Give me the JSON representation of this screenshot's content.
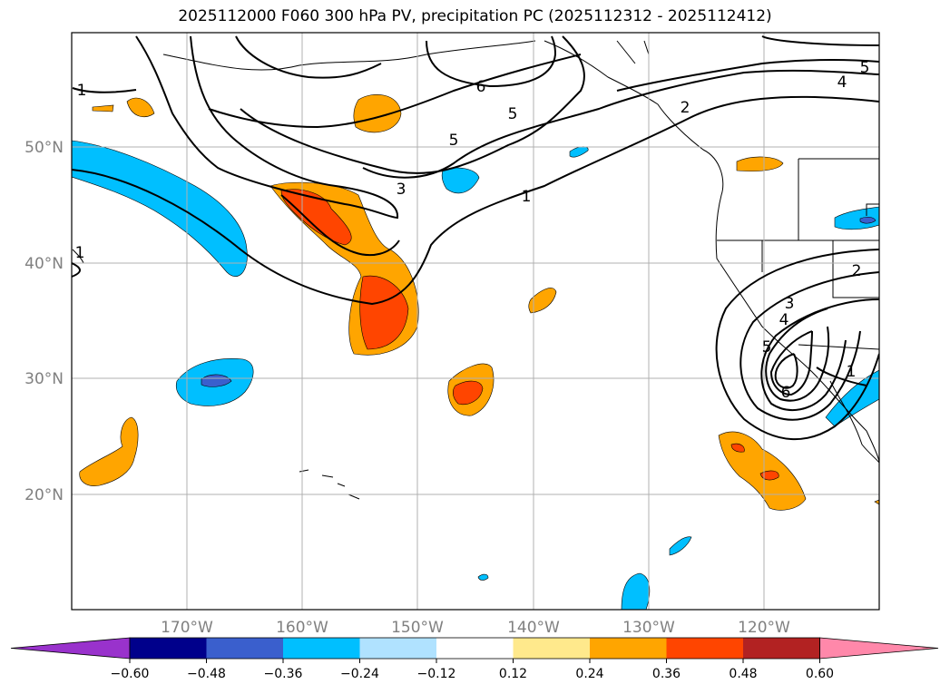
{
  "title": "2025112000 F060 300 hPa PV, precipitation PC (2025112312 - 2025112412)",
  "axes": {
    "lat_labels": [
      "50°N",
      "40°N",
      "30°N",
      "20°N"
    ],
    "lon_labels": [
      "170°W",
      "160°W",
      "150°W",
      "140°W",
      "130°W",
      "120°W"
    ]
  },
  "colorbar": {
    "colors": [
      "#9932cc",
      "#00008b",
      "#3a5fcd",
      "#00bfff",
      "#b0e2ff",
      "#ffffff",
      "#ffe98c",
      "#ffa500",
      "#ff4500",
      "#b22222",
      "#ff88aa"
    ],
    "tick_labels": [
      "−0.60",
      "−0.48",
      "−0.36",
      "−0.24",
      "−0.12",
      "0.12",
      "0.24",
      "0.36",
      "0.48",
      "0.60"
    ]
  },
  "contour_labels": [
    "1",
    "6",
    "5",
    "5",
    "3",
    "1",
    "2",
    "5",
    "4",
    "2",
    "3",
    "4",
    "5",
    "6",
    "1",
    "1"
  ]
}
